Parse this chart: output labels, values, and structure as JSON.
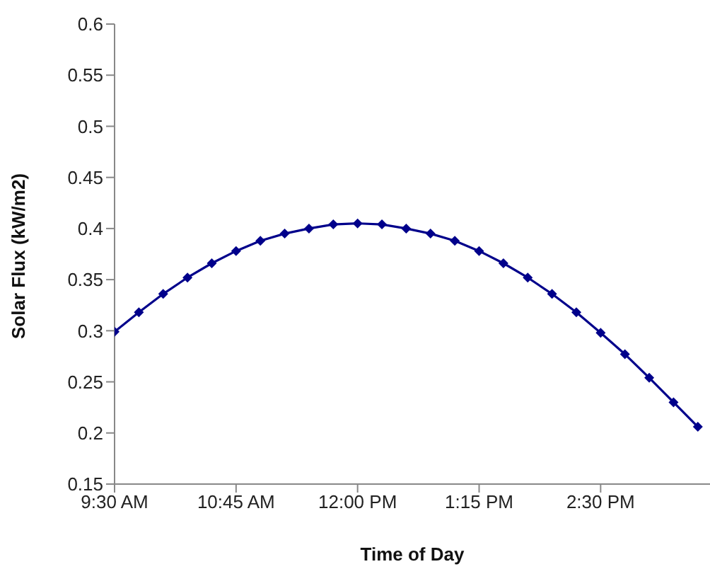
{
  "chart_data": {
    "type": "line",
    "xlabel": "Time of Day",
    "ylabel": "Solar Flux (kW/m2)",
    "x": [
      9.5,
      9.75,
      10,
      10.25,
      10.5,
      10.75,
      11,
      11.25,
      11.5,
      11.75,
      12,
      12.25,
      12.5,
      12.75,
      13,
      13.25,
      13.5,
      13.75,
      14,
      14.25,
      14.5,
      14.75,
      15,
      15.25,
      15.5
    ],
    "series": [
      {
        "color": "#00008b",
        "values": [
          0.299,
          0.318,
          0.336,
          0.352,
          0.366,
          0.378,
          0.388,
          0.395,
          0.4,
          0.404,
          0.405,
          0.404,
          0.4,
          0.395,
          0.388,
          0.378,
          0.366,
          0.352,
          0.336,
          0.318,
          0.298,
          0.277,
          0.254,
          0.23,
          0.206
        ]
      }
    ],
    "xlim": [
      9.5,
      15.625
    ],
    "xticks": [
      {
        "value": 9.5,
        "label": "9:30 AM"
      },
      {
        "value": 10.75,
        "label": "10:45 AM"
      },
      {
        "value": 12,
        "label": "12:00 PM"
      },
      {
        "value": 13.25,
        "label": "1:15 PM"
      },
      {
        "value": 14.5,
        "label": "2:30 PM"
      }
    ],
    "ylim": [
      0.15,
      0.6
    ],
    "yticks": [
      0.15,
      0.2,
      0.25,
      0.3,
      0.35,
      0.4,
      0.45,
      0.5,
      0.55,
      0.6
    ],
    "grid": false,
    "legend": false,
    "marker": "diamond",
    "line_style": "solid"
  }
}
